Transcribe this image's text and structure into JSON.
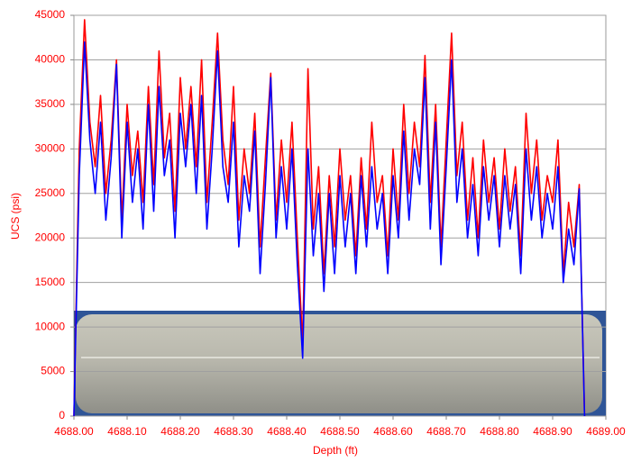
{
  "chart_data": {
    "type": "line",
    "x_label": "Depth (ft)",
    "y_label": "UCS (psi)",
    "xlim": [
      4688.0,
      4689.0
    ],
    "xticks": [
      {
        "value": 4688.0,
        "label": "4688.00"
      },
      {
        "value": 4688.1,
        "label": "4688.10"
      },
      {
        "value": 4688.2,
        "label": "4688.20"
      },
      {
        "value": 4688.3,
        "label": "4688.30"
      },
      {
        "value": 4688.4,
        "label": "4688.40"
      },
      {
        "value": 4688.5,
        "label": "4688.50"
      },
      {
        "value": 4688.6,
        "label": "4688.60"
      },
      {
        "value": 4688.7,
        "label": "4688.70"
      },
      {
        "value": 4688.8,
        "label": "4688.80"
      },
      {
        "value": 4688.9,
        "label": "4688.90"
      },
      {
        "value": 4689.0,
        "label": "4689.00"
      }
    ],
    "ylim": [
      0,
      45000
    ],
    "yticks": [
      0,
      5000,
      10000,
      15000,
      20000,
      25000,
      30000,
      35000,
      40000,
      45000
    ],
    "grid": true,
    "x": [
      4688.0,
      4688.01,
      4688.02,
      4688.03,
      4688.04,
      4688.05,
      4688.06,
      4688.07,
      4688.08,
      4688.09,
      4688.1,
      4688.11,
      4688.12,
      4688.13,
      4688.14,
      4688.15,
      4688.16,
      4688.17,
      4688.18,
      4688.19,
      4688.2,
      4688.21,
      4688.22,
      4688.23,
      4688.24,
      4688.25,
      4688.26,
      4688.27,
      4688.28,
      4688.29,
      4688.3,
      4688.31,
      4688.32,
      4688.33,
      4688.34,
      4688.35,
      4688.36,
      4688.37,
      4688.38,
      4688.39,
      4688.4,
      4688.41,
      4688.42,
      4688.43,
      4688.44,
      4688.45,
      4688.46,
      4688.47,
      4688.48,
      4688.49,
      4688.5,
      4688.51,
      4688.52,
      4688.53,
      4688.54,
      4688.55,
      4688.56,
      4688.57,
      4688.58,
      4688.59,
      4688.6,
      4688.61,
      4688.62,
      4688.63,
      4688.64,
      4688.65,
      4688.66,
      4688.67,
      4688.68,
      4688.69,
      4688.7,
      4688.71,
      4688.72,
      4688.73,
      4688.74,
      4688.75,
      4688.76,
      4688.77,
      4688.78,
      4688.79,
      4688.8,
      4688.81,
      4688.82,
      4688.83,
      4688.84,
      4688.85,
      4688.86,
      4688.87,
      4688.88,
      4688.89,
      4688.9,
      4688.91,
      4688.92,
      4688.93,
      4688.94,
      4688.95,
      4688.96
    ],
    "series": [
      {
        "color": "#ff0000",
        "values": [
          0,
          30000,
          44500,
          33000,
          28000,
          36000,
          25000,
          31000,
          40000,
          22000,
          35000,
          27000,
          32000,
          24000,
          37000,
          26000,
          41000,
          29000,
          34000,
          23000,
          38000,
          30000,
          37000,
          28000,
          40000,
          24000,
          33000,
          43000,
          31000,
          26000,
          37000,
          22000,
          30000,
          25000,
          34000,
          19000,
          29000,
          38500,
          22000,
          31000,
          24000,
          33000,
          20000,
          8000,
          39000,
          21000,
          28000,
          16000,
          27000,
          19000,
          30000,
          22000,
          27000,
          18000,
          29000,
          21000,
          33000,
          24000,
          27000,
          18000,
          30000,
          22000,
          35000,
          25000,
          33000,
          28000,
          40500,
          24000,
          35000,
          19000,
          31000,
          43000,
          27000,
          33000,
          22000,
          29000,
          20000,
          31000,
          24000,
          29000,
          21000,
          30000,
          23000,
          28000,
          18000,
          34000,
          25000,
          31000,
          22000,
          27000,
          24000,
          31000,
          16000,
          24000,
          19000,
          26000,
          0
        ]
      },
      {
        "color": "#0000ff",
        "values": [
          0,
          27000,
          42000,
          31000,
          25000,
          33000,
          22000,
          29000,
          39500,
          20000,
          33000,
          24000,
          30000,
          21000,
          35000,
          23000,
          37000,
          27000,
          31000,
          20000,
          34000,
          28000,
          35000,
          25000,
          36000,
          21000,
          30000,
          41000,
          28000,
          24000,
          33000,
          19000,
          27000,
          23000,
          32000,
          16000,
          26000,
          38000,
          20000,
          28000,
          21000,
          30000,
          17000,
          6500,
          30000,
          18000,
          25000,
          14000,
          25000,
          16000,
          27000,
          19000,
          25000,
          16000,
          27000,
          19000,
          28000,
          21000,
          25000,
          16000,
          27000,
          20000,
          32000,
          22000,
          30000,
          26000,
          38000,
          21000,
          33000,
          17000,
          28000,
          40000,
          24000,
          30000,
          20000,
          26000,
          18000,
          28000,
          22000,
          27000,
          19000,
          27000,
          21000,
          26000,
          16000,
          30000,
          22000,
          28000,
          20000,
          25000,
          21000,
          28000,
          15000,
          21000,
          17000,
          25500,
          0
        ]
      }
    ]
  }
}
